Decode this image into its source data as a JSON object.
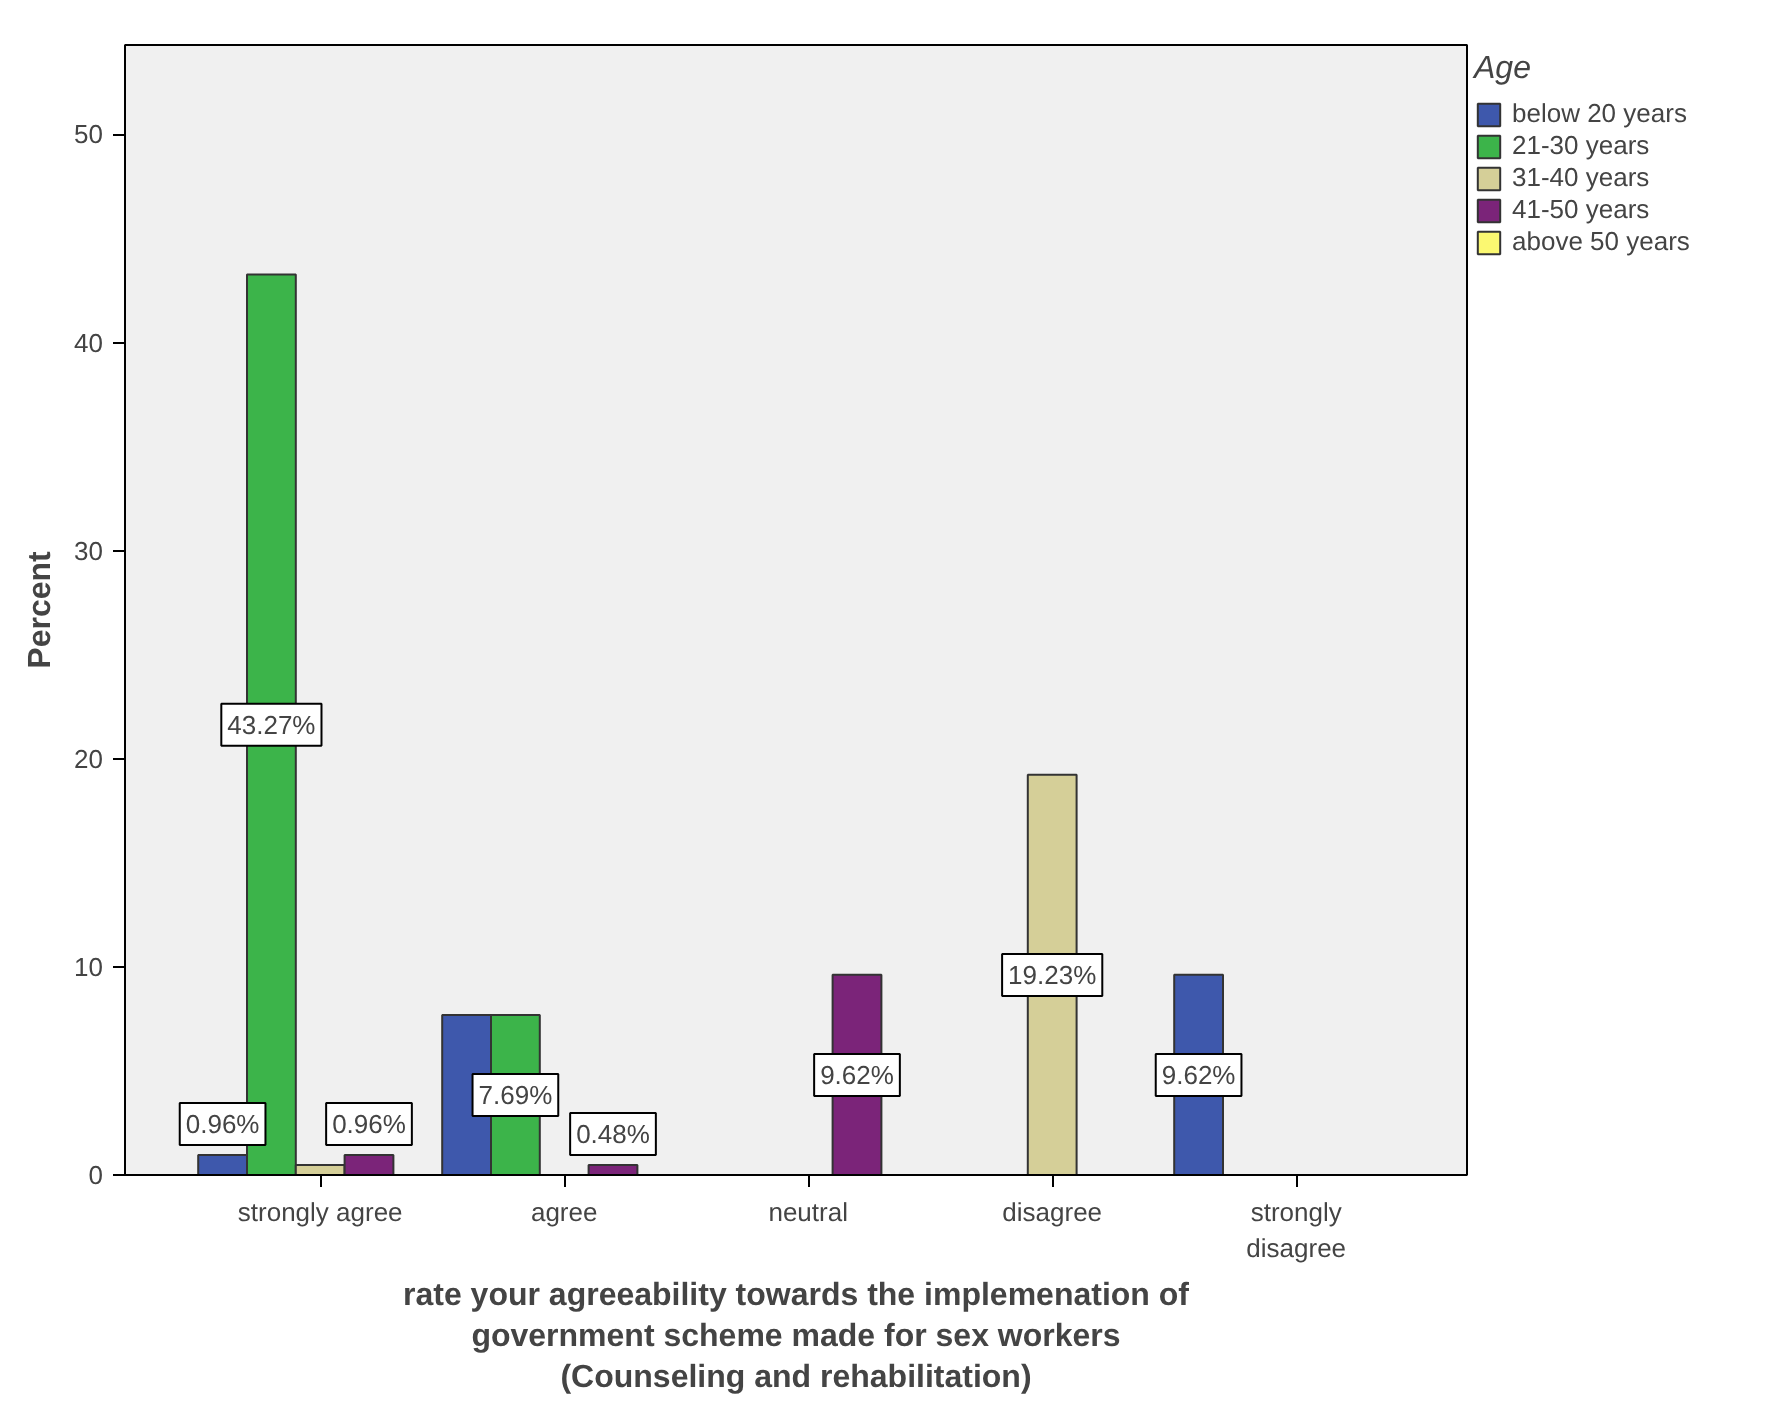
{
  "chart_data": {
    "type": "bar",
    "xlabel": "rate your agreeability towards the implemenation of\ngovernment scheme made for sex workers\n(Counseling and rehabilitation)",
    "ylabel": "Percent",
    "legend_title": "Age",
    "legend": "top right",
    "grid": false,
    "categories": [
      "strongly agree",
      "agree",
      "neutral",
      "disagree",
      "strongly disagree"
    ],
    "ylim": [
      0,
      54.3
    ],
    "yticks": [
      0,
      10,
      20,
      30,
      40,
      50
    ],
    "series": [
      {
        "name": "below 20 years",
        "color": "#3e58ac",
        "values": [
          0.96,
          7.69,
          null,
          null,
          9.62
        ],
        "value_labels": [
          "0.96%",
          null,
          null,
          null,
          "9.62%"
        ]
      },
      {
        "name": "21-30 years",
        "color": "#3cb44a",
        "values": [
          43.27,
          7.69,
          null,
          null,
          null
        ],
        "value_labels": [
          "43.27%",
          "7.69%",
          null,
          null,
          null
        ]
      },
      {
        "name": "31-40 years",
        "color": "#d5cf98",
        "values": [
          0.48,
          null,
          null,
          19.23,
          null
        ],
        "value_labels": [
          null,
          null,
          null,
          "19.23%",
          null
        ]
      },
      {
        "name": "41-50 years",
        "color": "#7b2479",
        "values": [
          0.96,
          0.48,
          9.62,
          null,
          null
        ],
        "value_labels": [
          "0.96%",
          "0.48%",
          "9.62%",
          null,
          null
        ]
      },
      {
        "name": "above 50 years",
        "color": "#fbf871",
        "values": [
          null,
          null,
          null,
          null,
          null
        ]
      }
    ]
  }
}
